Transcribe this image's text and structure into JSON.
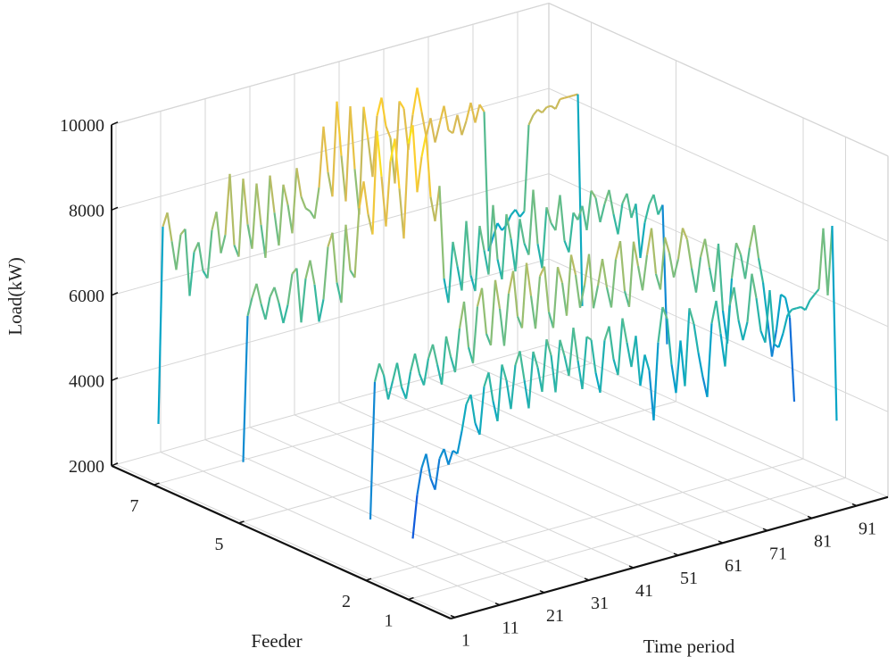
{
  "chart_data": {
    "type": "line",
    "projection": "3d",
    "xlabel": "Time period",
    "ylabel": "Feeder",
    "zlabel": "Load(kW)",
    "xlim": [
      0,
      98
    ],
    "ylim": [
      0,
      8
    ],
    "zlim": [
      2000,
      10000
    ],
    "xticks": [
      1,
      11,
      21,
      31,
      41,
      51,
      61,
      71,
      81,
      91
    ],
    "yticks": [
      1,
      2,
      5,
      7
    ],
    "zticks": [
      2000,
      4000,
      6000,
      8000,
      10000
    ],
    "zticklabels": [
      "2000",
      "4000",
      "6000",
      "8000",
      "10000"
    ],
    "grid": true,
    "colormap": "parula",
    "colormap_stops": [
      "#352a87",
      "#0f5cdd",
      "#1481d6",
      "#06a7c6",
      "#38b99e",
      "#92bf73",
      "#d9ba56",
      "#fcce2e",
      "#f9fb0e"
    ],
    "series": [
      {
        "feeder": 7,
        "values": [
          3400,
          8000,
          8300,
          7600,
          6900,
          7700,
          7800,
          6200,
          7200,
          7400,
          6700,
          6500,
          7600,
          8000,
          7000,
          7400,
          8800,
          7100,
          6800,
          8600,
          7500,
          6900,
          8400,
          7400,
          6600,
          8500,
          7600,
          6800,
          8200,
          7700,
          7000,
          8500,
          7800,
          7500,
          7400,
          7200,
          7900,
          9300,
          8200,
          7600,
          9800,
          8500,
          7400,
          9600,
          8100,
          7000,
          9500,
          8700,
          7800,
          9200,
          9600,
          8900,
          8600,
          7500,
          9400,
          9200,
          8200,
          9000,
          9600,
          9000,
          8400,
          8800,
          8200,
          8600,
          9000,
          8400,
          8300,
          8700,
          8200,
          8500,
          8900,
          8400,
          8800,
          8600,
          5300,
          5600,
          5900,
          5700,
          5800,
          6000,
          6100,
          5900,
          6000,
          8000,
          8200,
          8300,
          8200,
          8300,
          8300,
          8200,
          8400,
          8400,
          8400,
          8400,
          8400,
          3400
        ]
      },
      {
        "feeder": 5,
        "values": [
          3400,
          6800,
          7200,
          7500,
          7000,
          6600,
          7100,
          7300,
          6900,
          6400,
          6800,
          7500,
          7600,
          6300,
          7300,
          7700,
          7100,
          6200,
          6700,
          7900,
          8200,
          7000,
          6500,
          8300,
          7200,
          7000,
          8600,
          9200,
          8400,
          7900,
          10300,
          9200,
          8000,
          9500,
          10000,
          8800,
          7600,
          9800,
          10200,
          8600,
          9400,
          9900,
          8400,
          7800,
          8600,
          6400,
          5800,
          7200,
          6600,
          6000,
          7600,
          6300,
          5900,
          7400,
          6800,
          6200,
          7800,
          6500,
          6000,
          7500,
          6900,
          6100,
          7300,
          6700,
          6400,
          7900,
          6600,
          6000,
          7400,
          7000,
          6800,
          7600,
          6500,
          6200,
          7100,
          6900,
          7200,
          6600,
          7500,
          7300,
          6700,
          7100,
          7400,
          6800,
          6300,
          7000,
          7200,
          6600,
          6900,
          5600,
          6400,
          6800,
          7000,
          6500,
          6700,
          3400
        ]
      },
      {
        "feeder": 2,
        "values": [
          3400,
          6600,
          7000,
          6700,
          6100,
          6500,
          6900,
          6300,
          6000,
          6600,
          7000,
          6500,
          6200,
          6800,
          7100,
          6600,
          6100,
          7200,
          6700,
          6300,
          7300,
          7900,
          6800,
          6400,
          7700,
          8100,
          7000,
          6700,
          8200,
          7500,
          6600,
          7800,
          8300,
          7200,
          6900,
          8400,
          7600,
          6800,
          8000,
          8200,
          7100,
          6700,
          8100,
          7700,
          6900,
          8300,
          7800,
          7000,
          7500,
          8200,
          6900,
          7400,
          8000,
          7300,
          6800,
          7900,
          8300,
          7100,
          6700,
          8200,
          7600,
          7000,
          7800,
          8400,
          7300,
          6900,
          8100,
          7700,
          7100,
          7500,
          8200,
          7900,
          7200,
          6600,
          7400,
          7800,
          7100,
          6500,
          7600,
          6000,
          5200,
          6700,
          7500,
          7200,
          6600,
          7300,
          7800,
          7000,
          6400,
          5500,
          4600,
          5200,
          6000,
          5900,
          5400,
          3400
        ]
      },
      {
        "feeder": 1,
        "values": [
          3400,
          4400,
          5000,
          5300,
          4700,
          4400,
          5100,
          5300,
          4900,
          5200,
          5100,
          5600,
          6200,
          6400,
          5700,
          5400,
          6500,
          6800,
          6100,
          5600,
          6900,
          6500,
          5800,
          6800,
          7100,
          6400,
          5700,
          7000,
          6600,
          6000,
          7200,
          6800,
          5900,
          7100,
          6700,
          6200,
          7300,
          6500,
          5800,
          7000,
          6900,
          6100,
          5600,
          6800,
          7100,
          6300,
          5900,
          7200,
          6600,
          6000,
          6700,
          5500,
          6200,
          5800,
          4600,
          6400,
          7200,
          6900,
          5800,
          5100,
          6300,
          5200,
          7000,
          6600,
          5900,
          5300,
          4800,
          6500,
          7000,
          6200,
          5400,
          6800,
          7200,
          6400,
          5900,
          6300,
          7400,
          6800,
          6000,
          5700,
          6900,
          5600,
          5500,
          5800,
          6200,
          6300,
          6300,
          6300,
          6200,
          6400,
          6500,
          6600,
          8000,
          6400,
          8000,
          3400
        ]
      }
    ]
  }
}
